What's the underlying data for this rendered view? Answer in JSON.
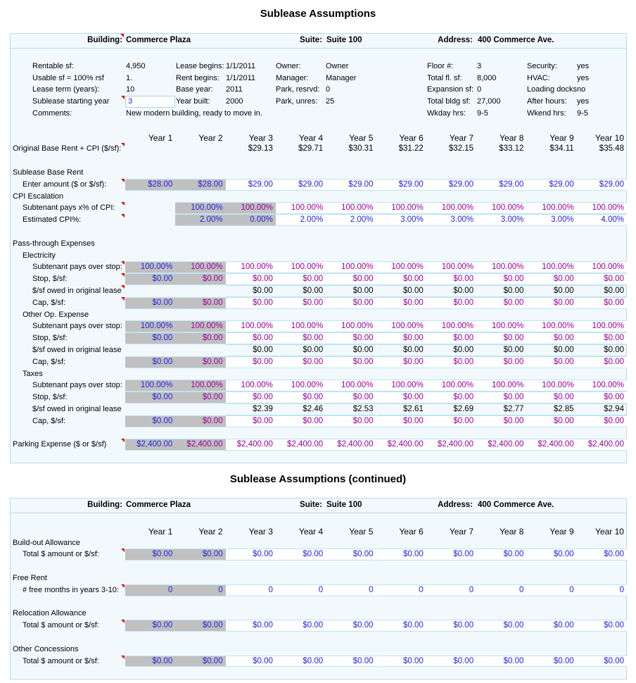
{
  "palette": {
    "input": "#2323e0",
    "calc": "#990099",
    "plain": "#000000",
    "shaded": "#c0c0c0",
    "sheet_bg": "#f2f9fd",
    "note": "#e00000"
  },
  "sheet1": {
    "title": "Sublease Assumptions",
    "header": {
      "building_label": "Building:",
      "building": "Commerce Plaza",
      "suite_label": "Suite:",
      "suite": "Suite 100",
      "address_label": "Address:",
      "address": "400 Commerce Ave."
    },
    "info": [
      [
        [
          "Rentable sf:",
          "4,950"
        ],
        [
          "Lease begins:",
          "1/1/2011"
        ],
        [
          "Owner:",
          "Owner"
        ],
        [
          "Floor #:",
          "3"
        ],
        [
          "Security:",
          "yes"
        ]
      ],
      [
        [
          "Usable sf = 100% rsf",
          "1."
        ],
        [
          "Rent begins:",
          "1/1/2011"
        ],
        [
          "Manager:",
          "Manager"
        ],
        [
          "Total fl. sf:",
          "8,000"
        ],
        [
          "HVAC:",
          "yes"
        ]
      ],
      [
        [
          "Lease term (years):",
          "10"
        ],
        [
          "Base year:",
          "2011"
        ],
        [
          "Park, resrvd:",
          "0"
        ],
        [
          "Expansion sf:",
          "0"
        ],
        [
          "Loading docks",
          "no"
        ]
      ],
      [
        [
          "Sublease starting year",
          "3"
        ],
        [
          "Year built:",
          "2000"
        ],
        [
          "Park, unres:",
          "25"
        ],
        [
          "Total bldg sf:",
          "27,000"
        ],
        [
          "After hours:",
          "yes"
        ]
      ],
      [
        [
          "Comments:",
          "New modern building, ready to move in."
        ],
        [
          "",
          ""
        ],
        [
          "",
          ""
        ],
        [
          "Wkday hrs:",
          "9-5"
        ],
        [
          "Wkend hrs:",
          "9-5"
        ]
      ]
    ],
    "years": [
      "Year 1",
      "Year 2",
      "Year 3",
      "Year 4",
      "Year 5",
      "Year 6",
      "Year 7",
      "Year 8",
      "Year 9",
      "Year 10"
    ],
    "rows": [
      {
        "kind": "years"
      },
      {
        "kind": "data",
        "label": "Original Base Rent + CPI ($/sf):",
        "indent": 0,
        "note": true,
        "bare": true,
        "values": [
          null,
          null,
          "$29.13",
          "$29.71",
          "$30.31",
          "$31.22",
          "$32.15",
          "$33.12",
          "$34.11",
          "$35.48"
        ],
        "colors": [
          "plain",
          "plain",
          "plain",
          "plain",
          "plain",
          "plain",
          "plain",
          "plain",
          "plain",
          "plain"
        ],
        "shaded": []
      },
      {
        "kind": "blank"
      },
      {
        "kind": "label",
        "label": "Sublease Base Rent",
        "indent": 0
      },
      {
        "kind": "data",
        "label": "Enter amount ($ or $/sf):",
        "indent": 1,
        "note": true,
        "values": [
          "$28.00",
          "$28.00",
          "$29.00",
          "$29.00",
          "$29.00",
          "$29.00",
          "$29.00",
          "$29.00",
          "$29.00",
          "$29.00"
        ],
        "colors": [
          "input",
          "input",
          "input",
          "input",
          "input",
          "input",
          "input",
          "input",
          "input",
          "input"
        ],
        "shaded": [
          0,
          1
        ]
      },
      {
        "kind": "label",
        "label": "CPI Escalation",
        "indent": 0
      },
      {
        "kind": "data",
        "label": "Subtenant pays x% of CPI:",
        "indent": 1,
        "note": true,
        "values": [
          null,
          "100.00%",
          "100.00%",
          "100.00%",
          "100.00%",
          "100.00%",
          "100.00%",
          "100.00%",
          "100.00%",
          "100.00%"
        ],
        "colors": [
          "input",
          "input",
          "calc",
          "calc",
          "calc",
          "calc",
          "calc",
          "calc",
          "calc",
          "calc"
        ],
        "shaded": [
          1,
          2
        ]
      },
      {
        "kind": "data",
        "label": "Estimated CPI%:",
        "indent": 1,
        "note": true,
        "values": [
          null,
          "2.00%",
          "0.00%",
          "2.00%",
          "2.00%",
          "3.00%",
          "3.00%",
          "3.00%",
          "3.00%",
          "4.00%"
        ],
        "colors": [
          "input",
          "input",
          "input",
          "input",
          "input",
          "input",
          "input",
          "input",
          "input",
          "input"
        ],
        "shaded": [
          1,
          2
        ]
      },
      {
        "kind": "blank"
      },
      {
        "kind": "label",
        "label": "Pass-through Expenses",
        "indent": 0
      },
      {
        "kind": "label",
        "label": "Electricity",
        "indent": 1
      },
      {
        "kind": "data",
        "label": "Subtenant pays over stop:",
        "indent": 2,
        "note": true,
        "values": [
          "100.00%",
          "100.00%",
          "100.00%",
          "100.00%",
          "100.00%",
          "100.00%",
          "100.00%",
          "100.00%",
          "100.00%",
          "100.00%"
        ],
        "colors": [
          "input",
          "calc",
          "calc",
          "calc",
          "calc",
          "calc",
          "calc",
          "calc",
          "calc",
          "calc"
        ],
        "shaded": [
          0,
          1
        ]
      },
      {
        "kind": "data",
        "label": "Stop, $/sf:",
        "indent": 2,
        "note": true,
        "values": [
          "$0.00",
          "$0.00",
          "$0.00",
          "$0.00",
          "$0.00",
          "$0.00",
          "$0.00",
          "$0.00",
          "$0.00",
          "$0.00"
        ],
        "colors": [
          "input",
          "calc",
          "calc",
          "calc",
          "calc",
          "calc",
          "calc",
          "calc",
          "calc",
          "calc"
        ],
        "shaded": [
          0,
          1
        ]
      },
      {
        "kind": "data",
        "label": "$/sf owed in original lease",
        "indent": 2,
        "note": true,
        "bare": true,
        "values": [
          null,
          null,
          "$0.00",
          "$0.00",
          "$0.00",
          "$0.00",
          "$0.00",
          "$0.00",
          "$0.00",
          "$0.00"
        ],
        "colors": [
          "plain",
          "plain",
          "plain",
          "plain",
          "plain",
          "plain",
          "plain",
          "plain",
          "plain",
          "plain"
        ],
        "shaded": []
      },
      {
        "kind": "data",
        "label": "Cap, $/sf:",
        "indent": 2,
        "note": true,
        "values": [
          "$0.00",
          "$0.00",
          "$0.00",
          "$0.00",
          "$0.00",
          "$0.00",
          "$0.00",
          "$0.00",
          "$0.00",
          "$0.00"
        ],
        "colors": [
          "input",
          "calc",
          "calc",
          "calc",
          "calc",
          "calc",
          "calc",
          "calc",
          "calc",
          "calc"
        ],
        "shaded": [
          0,
          1
        ]
      },
      {
        "kind": "label",
        "label": "Other Op. Expense",
        "indent": 1
      },
      {
        "kind": "data",
        "label": "Subtenant pays over stop:",
        "indent": 2,
        "values": [
          "100.00%",
          "100.00%",
          "100.00%",
          "100.00%",
          "100.00%",
          "100.00%",
          "100.00%",
          "100.00%",
          "100.00%",
          "100.00%"
        ],
        "colors": [
          "input",
          "calc",
          "calc",
          "calc",
          "calc",
          "calc",
          "calc",
          "calc",
          "calc",
          "calc"
        ],
        "shaded": [
          0,
          1
        ]
      },
      {
        "kind": "data",
        "label": "Stop, $/sf:",
        "indent": 2,
        "values": [
          "$0.00",
          "$0.00",
          "$0.00",
          "$0.00",
          "$0.00",
          "$0.00",
          "$0.00",
          "$0.00",
          "$0.00",
          "$0.00"
        ],
        "colors": [
          "input",
          "calc",
          "calc",
          "calc",
          "calc",
          "calc",
          "calc",
          "calc",
          "calc",
          "calc"
        ],
        "shaded": [
          0,
          1
        ]
      },
      {
        "kind": "data",
        "label": "$/sf owed in original lease",
        "indent": 2,
        "bare": true,
        "values": [
          null,
          null,
          "$0.00",
          "$0.00",
          "$0.00",
          "$0.00",
          "$0.00",
          "$0.00",
          "$0.00",
          "$0.00"
        ],
        "colors": [
          "plain",
          "plain",
          "plain",
          "plain",
          "plain",
          "plain",
          "plain",
          "plain",
          "plain",
          "plain"
        ],
        "shaded": []
      },
      {
        "kind": "data",
        "label": "Cap, $/sf:",
        "indent": 2,
        "values": [
          "$0.00",
          "$0.00",
          "$0.00",
          "$0.00",
          "$0.00",
          "$0.00",
          "$0.00",
          "$0.00",
          "$0.00",
          "$0.00"
        ],
        "colors": [
          "input",
          "calc",
          "calc",
          "calc",
          "calc",
          "calc",
          "calc",
          "calc",
          "calc",
          "calc"
        ],
        "shaded": [
          0,
          1
        ]
      },
      {
        "kind": "label",
        "label": "Taxes",
        "indent": 1
      },
      {
        "kind": "data",
        "label": "Subtenant pays over stop:",
        "indent": 2,
        "values": [
          "100.00%",
          "100.00%",
          "100.00%",
          "100.00%",
          "100.00%",
          "100.00%",
          "100.00%",
          "100.00%",
          "100.00%",
          "100.00%"
        ],
        "colors": [
          "input",
          "calc",
          "calc",
          "calc",
          "calc",
          "calc",
          "calc",
          "calc",
          "calc",
          "calc"
        ],
        "shaded": [
          0,
          1
        ]
      },
      {
        "kind": "data",
        "label": "Stop, $/sf:",
        "indent": 2,
        "values": [
          "$0.00",
          "$0.00",
          "$0.00",
          "$0.00",
          "$0.00",
          "$0.00",
          "$0.00",
          "$0.00",
          "$0.00",
          "$0.00"
        ],
        "colors": [
          "input",
          "calc",
          "calc",
          "calc",
          "calc",
          "calc",
          "calc",
          "calc",
          "calc",
          "calc"
        ],
        "shaded": [
          0,
          1
        ]
      },
      {
        "kind": "data",
        "label": "$/sf owed in original lease",
        "indent": 2,
        "bare": true,
        "values": [
          null,
          null,
          "$2.39",
          "$2.46",
          "$2.53",
          "$2.61",
          "$2.69",
          "$2.77",
          "$2.85",
          "$2.94"
        ],
        "colors": [
          "plain",
          "plain",
          "plain",
          "plain",
          "plain",
          "plain",
          "plain",
          "plain",
          "plain",
          "plain"
        ],
        "shaded": []
      },
      {
        "kind": "data",
        "label": "Cap, $/sf:",
        "indent": 2,
        "values": [
          "$0.00",
          "$0.00",
          "$0.00",
          "$0.00",
          "$0.00",
          "$0.00",
          "$0.00",
          "$0.00",
          "$0.00",
          "$0.00"
        ],
        "colors": [
          "input",
          "calc",
          "calc",
          "calc",
          "calc",
          "calc",
          "calc",
          "calc",
          "calc",
          "calc"
        ],
        "shaded": [
          0,
          1
        ]
      },
      {
        "kind": "blank"
      },
      {
        "kind": "data",
        "label": "Parking Expense ($ or $/sf)",
        "indent": 0,
        "note": true,
        "values": [
          "$2,400.00",
          "$2,400.00",
          "$2,400.00",
          "$2,400.00",
          "$2,400.00",
          "$2,400.00",
          "$2,400.00",
          "$2,400.00",
          "$2,400.00",
          "$2,400.00"
        ],
        "colors": [
          "input",
          "calc",
          "calc",
          "calc",
          "calc",
          "calc",
          "calc",
          "calc",
          "calc",
          "calc"
        ],
        "shaded": [
          0,
          1
        ]
      },
      {
        "kind": "blank"
      }
    ]
  },
  "sheet2": {
    "title": "Sublease Assumptions (continued)",
    "header": {
      "building_label": "Building:",
      "building": "Commerce Plaza",
      "suite_label": "Suite:",
      "suite": "Suite 100",
      "address_label": "Address:",
      "address": "400 Commerce Ave."
    },
    "rows": [
      {
        "kind": "blank"
      },
      {
        "kind": "years"
      },
      {
        "kind": "label",
        "label": "Build-out Allowance",
        "indent": 0
      },
      {
        "kind": "data",
        "label": "Total $ amount or $/sf:",
        "indent": 1,
        "note": true,
        "values": [
          "$0.00",
          "$0.00",
          "$0.00",
          "$0.00",
          "$0.00",
          "$0.00",
          "$0.00",
          "$0.00",
          "$0.00",
          "$0.00"
        ],
        "colors": [
          "input",
          "input",
          "input",
          "input",
          "input",
          "input",
          "input",
          "input",
          "input",
          "input"
        ],
        "shaded": [
          0,
          1
        ]
      },
      {
        "kind": "blank"
      },
      {
        "kind": "label",
        "label": "Free Rent",
        "indent": 0
      },
      {
        "kind": "data",
        "label": "# free months in years 3-10:",
        "indent": 1,
        "note": true,
        "values": [
          "0",
          "0",
          "0",
          "0",
          "0",
          "0",
          "0",
          "0",
          "0",
          "0"
        ],
        "colors": [
          "input",
          "input",
          "input",
          "input",
          "input",
          "input",
          "input",
          "input",
          "input",
          "input"
        ],
        "shaded": [
          0,
          1
        ]
      },
      {
        "kind": "blank"
      },
      {
        "kind": "label",
        "label": "Relocation Allowance",
        "indent": 0
      },
      {
        "kind": "data",
        "label": "Total $ amount or $/sf:",
        "indent": 1,
        "note": true,
        "values": [
          "$0.00",
          "$0.00",
          "$0.00",
          "$0.00",
          "$0.00",
          "$0.00",
          "$0.00",
          "$0.00",
          "$0.00",
          "$0.00"
        ],
        "colors": [
          "input",
          "input",
          "input",
          "input",
          "input",
          "input",
          "input",
          "input",
          "input",
          "input"
        ],
        "shaded": [
          0,
          1
        ]
      },
      {
        "kind": "blank"
      },
      {
        "kind": "label",
        "label": "Other Concessions",
        "indent": 0
      },
      {
        "kind": "data",
        "label": "Total $ amount or $/sf:",
        "indent": 1,
        "note": true,
        "values": [
          "$0.00",
          "$0.00",
          "$0.00",
          "$0.00",
          "$0.00",
          "$0.00",
          "$0.00",
          "$0.00",
          "$0.00",
          "$0.00"
        ],
        "colors": [
          "input",
          "input",
          "input",
          "input",
          "input",
          "input",
          "input",
          "input",
          "input",
          "input"
        ],
        "shaded": [
          0,
          1
        ]
      },
      {
        "kind": "blank"
      }
    ]
  }
}
